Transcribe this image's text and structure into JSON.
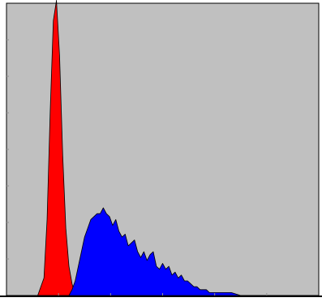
{
  "chart_data": {
    "type": "area",
    "title": "",
    "xlabel": "",
    "ylabel": "",
    "xlim": [
      0,
      100
    ],
    "ylim": [
      0,
      100
    ],
    "grid": false,
    "legend": "none",
    "background_color": "#c0c0c0",
    "x": [
      0,
      6,
      8,
      10,
      12,
      13,
      14,
      15,
      16,
      17,
      18,
      19,
      20,
      21,
      22,
      23,
      24,
      25,
      26,
      27,
      28,
      29,
      30,
      31,
      32,
      33,
      34,
      35,
      36,
      37,
      38,
      39,
      40,
      41,
      42,
      43,
      44,
      45,
      46,
      47,
      48,
      49,
      50,
      51,
      52,
      53,
      54,
      55,
      56,
      57,
      58,
      59,
      60,
      61,
      62,
      63,
      64,
      65,
      66,
      68,
      70,
      72,
      75,
      80,
      85,
      100
    ],
    "series": [
      {
        "color": "#ff0000",
        "values": [
          0,
          0,
          0,
          0,
          6,
          26,
          63,
          94,
          101,
          82,
          48,
          23,
          10,
          4,
          0,
          0,
          0,
          0,
          0,
          0,
          0,
          0,
          0,
          0,
          0,
          0,
          0,
          0,
          0,
          0,
          0,
          0,
          0,
          0,
          0,
          0,
          0,
          0,
          0,
          0,
          0,
          0,
          0,
          0,
          0,
          0,
          0,
          0,
          0,
          0,
          0,
          0,
          0,
          0,
          0,
          0,
          0,
          0,
          0,
          0,
          0,
          0,
          0,
          0,
          0,
          0
        ]
      },
      {
        "color": "#0000ff",
        "values": [
          0,
          0,
          0,
          0,
          0,
          0,
          0,
          0,
          0,
          0,
          0,
          0,
          0,
          2,
          5,
          10,
          15,
          20,
          23,
          26,
          27,
          28,
          28,
          30,
          28,
          27,
          24,
          26,
          22,
          20,
          21,
          17,
          18,
          19,
          15,
          13,
          15,
          12,
          14,
          15,
          10,
          9,
          11,
          9,
          10,
          7,
          8,
          6,
          7,
          5,
          5,
          4,
          3,
          3,
          2,
          2,
          2,
          1,
          1,
          1,
          1,
          1,
          0,
          0,
          0,
          0
        ]
      }
    ]
  }
}
